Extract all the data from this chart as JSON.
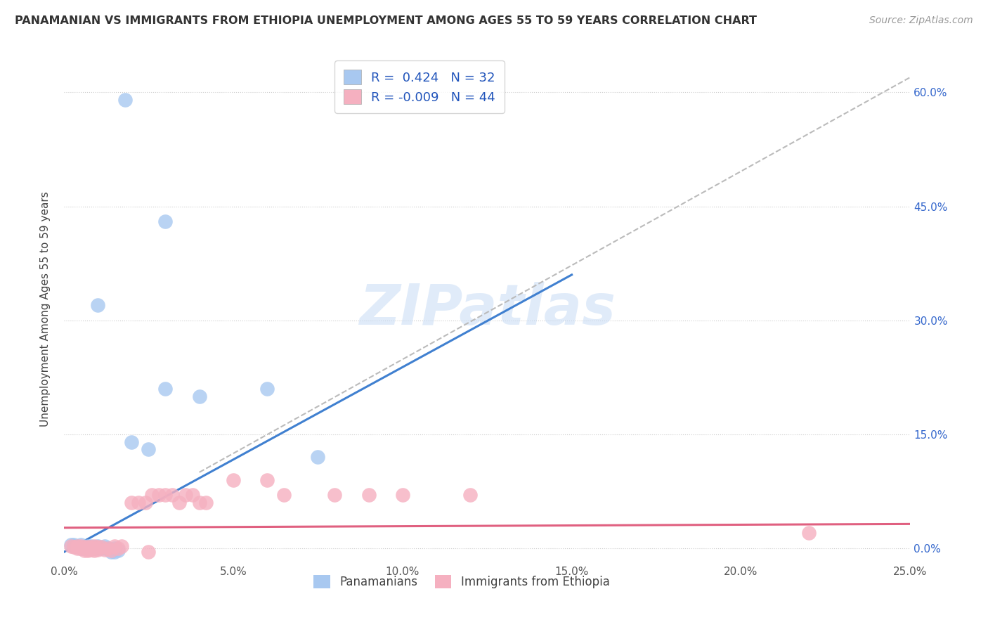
{
  "title": "PANAMANIAN VS IMMIGRANTS FROM ETHIOPIA UNEMPLOYMENT AMONG AGES 55 TO 59 YEARS CORRELATION CHART",
  "source": "Source: ZipAtlas.com",
  "ylabel": "Unemployment Among Ages 55 to 59 years",
  "xlim": [
    0.0,
    0.25
  ],
  "ylim": [
    -0.02,
    0.65
  ],
  "xticks": [
    0.0,
    0.05,
    0.1,
    0.15,
    0.2,
    0.25
  ],
  "xtick_labels": [
    "0.0%",
    "5.0%",
    "10.0%",
    "15.0%",
    "20.0%",
    "25.0%"
  ],
  "yticks": [
    0.0,
    0.15,
    0.3,
    0.45,
    0.6
  ],
  "ytick_labels": [
    "0.0%",
    "15.0%",
    "30.0%",
    "45.0%",
    "60.0%"
  ],
  "R_blue": 0.424,
  "N_blue": 32,
  "R_pink": -0.009,
  "N_pink": 44,
  "blue_color": "#A8C8F0",
  "pink_color": "#F5B0C0",
  "blue_line_color": "#4080D0",
  "pink_line_color": "#E06080",
  "watermark": "ZIPatlas",
  "legend_text_color": "#2255BB",
  "blue_scatter": [
    [
      0.002,
      0.005
    ],
    [
      0.003,
      0.003
    ],
    [
      0.004,
      0.002
    ],
    [
      0.005,
      0.0
    ],
    [
      0.005,
      0.005
    ],
    [
      0.006,
      0.0
    ],
    [
      0.007,
      0.003
    ],
    [
      0.007,
      0.0
    ],
    [
      0.008,
      0.003
    ],
    [
      0.008,
      0.0
    ],
    [
      0.009,
      0.002
    ],
    [
      0.009,
      0.0
    ],
    [
      0.01,
      0.003
    ],
    [
      0.01,
      0.0
    ],
    [
      0.011,
      0.0
    ],
    [
      0.012,
      0.003
    ],
    [
      0.012,
      0.0
    ],
    [
      0.013,
      0.0
    ],
    [
      0.014,
      -0.005
    ],
    [
      0.015,
      -0.005
    ],
    [
      0.015,
      0.0
    ],
    [
      0.016,
      -0.003
    ],
    [
      0.02,
      0.14
    ],
    [
      0.025,
      0.13
    ],
    [
      0.03,
      0.21
    ],
    [
      0.04,
      0.2
    ],
    [
      0.06,
      0.21
    ],
    [
      0.075,
      0.12
    ],
    [
      0.01,
      0.32
    ],
    [
      0.03,
      0.43
    ],
    [
      0.018,
      0.59
    ],
    [
      0.003,
      0.005
    ]
  ],
  "pink_scatter": [
    [
      0.002,
      0.003
    ],
    [
      0.003,
      0.002
    ],
    [
      0.004,
      0.003
    ],
    [
      0.004,
      0.0
    ],
    [
      0.005,
      0.003
    ],
    [
      0.005,
      0.0
    ],
    [
      0.006,
      0.002
    ],
    [
      0.006,
      -0.003
    ],
    [
      0.007,
      0.002
    ],
    [
      0.007,
      -0.003
    ],
    [
      0.008,
      0.002
    ],
    [
      0.008,
      -0.002
    ],
    [
      0.009,
      0.003
    ],
    [
      0.009,
      -0.003
    ],
    [
      0.01,
      0.002
    ],
    [
      0.01,
      -0.002
    ],
    [
      0.011,
      0.002
    ],
    [
      0.012,
      -0.002
    ],
    [
      0.013,
      0.0
    ],
    [
      0.014,
      -0.003
    ],
    [
      0.015,
      0.003
    ],
    [
      0.016,
      0.0
    ],
    [
      0.017,
      0.003
    ],
    [
      0.02,
      0.06
    ],
    [
      0.022,
      0.06
    ],
    [
      0.024,
      0.06
    ],
    [
      0.026,
      0.07
    ],
    [
      0.028,
      0.07
    ],
    [
      0.03,
      0.07
    ],
    [
      0.032,
      0.07
    ],
    [
      0.034,
      0.06
    ],
    [
      0.036,
      0.07
    ],
    [
      0.038,
      0.07
    ],
    [
      0.04,
      0.06
    ],
    [
      0.042,
      0.06
    ],
    [
      0.05,
      0.09
    ],
    [
      0.065,
      0.07
    ],
    [
      0.08,
      0.07
    ],
    [
      0.09,
      0.07
    ],
    [
      0.1,
      0.07
    ],
    [
      0.12,
      0.07
    ],
    [
      0.06,
      0.09
    ],
    [
      0.22,
      0.02
    ],
    [
      0.025,
      -0.005
    ]
  ],
  "blue_line": [
    [
      0.0,
      -0.005
    ],
    [
      0.15,
      0.36
    ]
  ],
  "pink_line": [
    [
      0.0,
      0.027
    ],
    [
      0.25,
      0.032
    ]
  ],
  "gray_dash_line": [
    [
      0.04,
      0.1
    ],
    [
      0.25,
      0.62
    ]
  ]
}
